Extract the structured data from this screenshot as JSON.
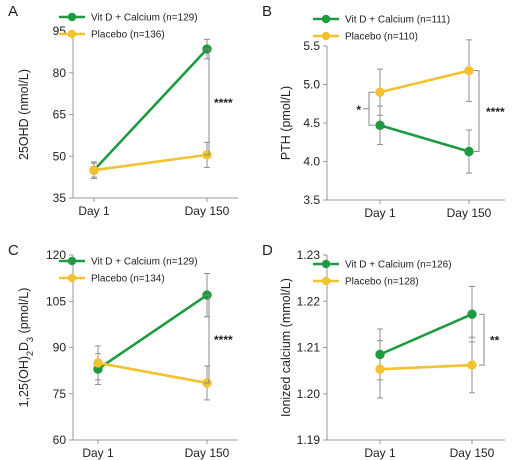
{
  "colors": {
    "treatment": "#1e9a40",
    "placebo": "#f2c230",
    "axis": "#9a9a9a",
    "error": "#8f8f8f",
    "bracket": "#8a8a8a"
  },
  "chart_data": [
    {
      "type": "line",
      "panel": "A",
      "categories": [
        "Day 1",
        "Day 150"
      ],
      "ylabel": "25OHD (nmol/L)",
      "ylim": [
        35,
        95
      ],
      "yticks": [
        "35",
        "50",
        "65",
        "80",
        "95"
      ],
      "grid": false,
      "legend": "top-left",
      "series": [
        {
          "name": "Vit D + Calcium (n=129)",
          "color": "#1e9a40",
          "values": [
            45.0,
            88.5
          ],
          "err": [
            2.5,
            3.5
          ]
        },
        {
          "name": "Placebo (n=136)",
          "color": "#f2c230",
          "values": [
            45.0,
            50.5
          ],
          "err": [
            3.0,
            4.5
          ]
        }
      ],
      "annotations": [
        {
          "text": "****",
          "at": "Day 150"
        }
      ]
    },
    {
      "type": "line",
      "panel": "B",
      "categories": [
        "Day 1",
        "Day 150"
      ],
      "ylabel": "PTH (pmol/L)",
      "ylim": [
        3.5,
        5.5
      ],
      "yticks": [
        "3.5",
        "4.0",
        "4.5",
        "5.0",
        "5.5"
      ],
      "grid": false,
      "legend": "top-left",
      "series": [
        {
          "name": "Vit D + Calcium (n=111)",
          "color": "#1e9a40",
          "values": [
            4.47,
            4.13
          ],
          "err": [
            0.25,
            0.28
          ]
        },
        {
          "name": "Placebo (n=110)",
          "color": "#f2c230",
          "values": [
            4.9,
            5.18
          ],
          "err": [
            0.3,
            0.4
          ]
        }
      ],
      "annotations": [
        {
          "text": "*",
          "at": "Day 1"
        },
        {
          "text": "****",
          "at": "Day 150"
        }
      ]
    },
    {
      "type": "line",
      "panel": "C",
      "categories": [
        "Day 1",
        "Day 150"
      ],
      "ylabel": "1,25(OH)₂D₃ (pmol/L)",
      "ylim": [
        60,
        120
      ],
      "yticks": [
        "60",
        "75",
        "90",
        "105",
        "120"
      ],
      "grid": false,
      "legend": "top-left",
      "series": [
        {
          "name": "Vit D + Calcium (n=129)",
          "color": "#1e9a40",
          "values": [
            83.0,
            107.0
          ],
          "err": [
            5.0,
            7.0
          ]
        },
        {
          "name": "Placebo (n=134)",
          "color": "#f2c230",
          "values": [
            85.0,
            78.5
          ],
          "err": [
            5.5,
            5.5
          ]
        }
      ],
      "annotations": [
        {
          "text": "****",
          "at": "Day 150"
        }
      ]
    },
    {
      "type": "line",
      "panel": "D",
      "categories": [
        "Day 1",
        "Day 150"
      ],
      "ylabel": "Ionized calcium (mmol/L)",
      "ylim": [
        1.19,
        1.23
      ],
      "yticks": [
        "1.19",
        "1.20",
        "1.21",
        "1.22",
        "1.23"
      ],
      "grid": false,
      "legend": "top-left",
      "series": [
        {
          "name": "Vit D + Calcium (n=126)",
          "color": "#1e9a40",
          "values": [
            1.2085,
            1.2172
          ],
          "err": [
            0.0055,
            0.006
          ]
        },
        {
          "name": "Placebo (n=128)",
          "color": "#f2c230",
          "values": [
            1.2053,
            1.2062
          ],
          "err": [
            0.0062,
            0.006
          ]
        }
      ],
      "annotations": [
        {
          "text": "**",
          "at": "Day 150"
        }
      ]
    }
  ]
}
